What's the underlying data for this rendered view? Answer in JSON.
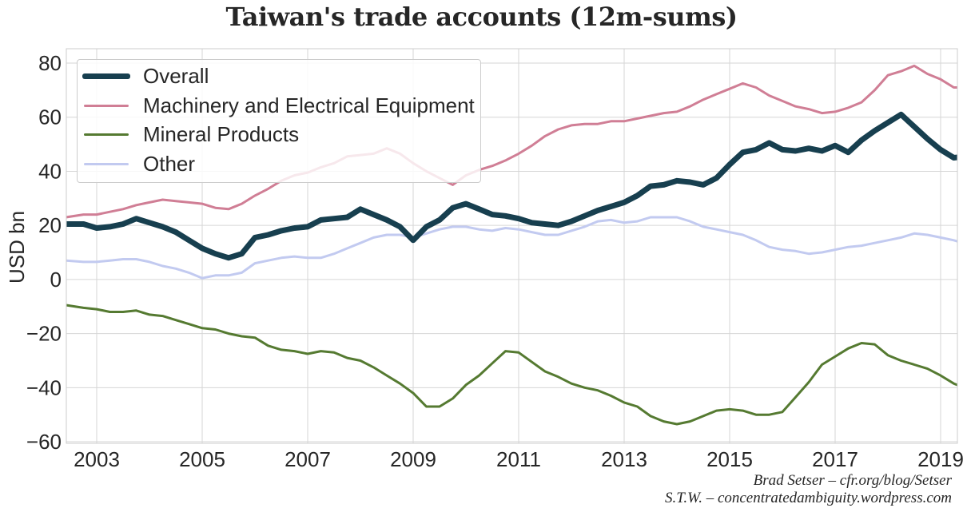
{
  "title": "Taiwan's trade accounts (12m-sums)",
  "credits": [
    "Brad Setser – cfr.org/blog/Setser",
    "S.T.W. – concentratedambiguity.wordpress.com"
  ],
  "colors": {
    "overall": "#173f4f",
    "machinery": "#d07e95",
    "mineral": "#557a31",
    "other": "#c2caf0",
    "grid": "#d6d6d6",
    "text": "#262626"
  },
  "legend": [
    {
      "label": "Overall",
      "key": "overall"
    },
    {
      "label": "Machinery and Electrical Equipment",
      "key": "machinery"
    },
    {
      "label": "Mineral Products",
      "key": "mineral"
    },
    {
      "label": "Other",
      "key": "other"
    }
  ],
  "chart_data": {
    "type": "line",
    "title": "Taiwan's trade accounts (12m-sums)",
    "xlabel": "",
    "ylabel": "USD bn",
    "xlim": [
      2002.42,
      2019.5
    ],
    "ylim": [
      -60,
      85
    ],
    "yticks": [
      80,
      60,
      40,
      20,
      0,
      -20,
      -40,
      -60
    ],
    "ytick_labels": [
      "80",
      "60",
      "40",
      "20",
      "0",
      "−20",
      "−40",
      "−60"
    ],
    "xticks": [
      2003,
      2005,
      2007,
      2009,
      2011,
      2013,
      2015,
      2017,
      2019
    ],
    "grid": true,
    "legend_position": "upper left",
    "series": [
      {
        "name": "Overall",
        "x": [
          2002.42,
          2002.75,
          2003.0,
          2003.25,
          2003.5,
          2003.75,
          2004.0,
          2004.25,
          2004.5,
          2004.75,
          2005.0,
          2005.25,
          2005.5,
          2005.75,
          2006.0,
          2006.25,
          2006.5,
          2006.75,
          2007.0,
          2007.25,
          2007.5,
          2007.75,
          2008.0,
          2008.25,
          2008.5,
          2008.75,
          2009.0,
          2009.25,
          2009.5,
          2009.75,
          2010.0,
          2010.25,
          2010.5,
          2010.75,
          2011.0,
          2011.25,
          2011.5,
          2011.75,
          2012.0,
          2012.25,
          2012.5,
          2012.75,
          2013.0,
          2013.25,
          2013.5,
          2013.75,
          2014.0,
          2014.25,
          2014.5,
          2014.75,
          2015.0,
          2015.25,
          2015.5,
          2015.75,
          2016.0,
          2016.25,
          2016.5,
          2016.75,
          2017.0,
          2017.25,
          2017.5,
          2017.75,
          2018.0,
          2018.25,
          2018.5,
          2018.75,
          2019.0,
          2019.25,
          2019.5
        ],
        "values": [
          20.5,
          20.5,
          19.0,
          19.5,
          20.5,
          22.5,
          21.0,
          19.5,
          17.5,
          14.5,
          11.5,
          9.5,
          8.0,
          9.5,
          15.5,
          16.5,
          18.0,
          19.0,
          19.5,
          22.0,
          22.5,
          23.0,
          26.0,
          24.0,
          22.0,
          19.5,
          14.5,
          19.5,
          22.0,
          26.5,
          28.0,
          26.0,
          24.0,
          23.5,
          22.5,
          21.0,
          20.5,
          20.0,
          21.5,
          23.5,
          25.5,
          27.0,
          28.5,
          31.0,
          34.5,
          35.0,
          36.5,
          36.0,
          35.0,
          37.5,
          42.5,
          47.0,
          48.0,
          50.5,
          48.0,
          47.5,
          48.5,
          47.5,
          49.5,
          47.0,
          51.5,
          55.0,
          58.0,
          61.0,
          56.5,
          52.0,
          48.0,
          45.0,
          45.5
        ]
      },
      {
        "name": "Machinery and Electrical Equipment",
        "x": [
          2002.42,
          2002.75,
          2003.0,
          2003.25,
          2003.5,
          2003.75,
          2004.0,
          2004.25,
          2004.5,
          2004.75,
          2005.0,
          2005.25,
          2005.5,
          2005.75,
          2006.0,
          2006.25,
          2006.5,
          2006.75,
          2007.0,
          2007.25,
          2007.5,
          2007.75,
          2008.0,
          2008.25,
          2008.5,
          2008.75,
          2009.0,
          2009.25,
          2009.5,
          2009.75,
          2010.0,
          2010.25,
          2010.5,
          2010.75,
          2011.0,
          2011.25,
          2011.5,
          2011.75,
          2012.0,
          2012.25,
          2012.5,
          2012.75,
          2013.0,
          2013.25,
          2013.5,
          2013.75,
          2014.0,
          2014.25,
          2014.5,
          2014.75,
          2015.0,
          2015.25,
          2015.5,
          2015.75,
          2016.0,
          2016.25,
          2016.5,
          2016.75,
          2017.0,
          2017.25,
          2017.5,
          2017.75,
          2018.0,
          2018.25,
          2018.5,
          2018.75,
          2019.0,
          2019.25,
          2019.5
        ],
        "values": [
          23.0,
          24.0,
          24.0,
          25.0,
          26.0,
          27.5,
          28.5,
          29.5,
          29.0,
          28.5,
          28.0,
          26.5,
          26.0,
          28.0,
          31.0,
          33.5,
          36.5,
          38.5,
          39.5,
          41.5,
          43.0,
          45.5,
          46.0,
          46.5,
          48.5,
          46.5,
          43.0,
          40.0,
          37.5,
          35.0,
          38.5,
          40.5,
          42.0,
          44.0,
          46.5,
          49.5,
          53.0,
          55.5,
          57.0,
          57.5,
          57.5,
          58.5,
          58.5,
          59.5,
          60.5,
          61.5,
          62.0,
          64.0,
          66.5,
          68.5,
          70.5,
          72.5,
          71.0,
          68.0,
          66.0,
          64.0,
          63.0,
          61.5,
          62.0,
          63.5,
          65.5,
          70.0,
          75.5,
          77.0,
          79.0,
          76.0,
          74.0,
          71.0,
          71.0
        ]
      },
      {
        "name": "Mineral Products",
        "x": [
          2002.42,
          2002.75,
          2003.0,
          2003.25,
          2003.5,
          2003.75,
          2004.0,
          2004.25,
          2004.5,
          2004.75,
          2005.0,
          2005.25,
          2005.5,
          2005.75,
          2006.0,
          2006.25,
          2006.5,
          2006.75,
          2007.0,
          2007.25,
          2007.5,
          2007.75,
          2008.0,
          2008.25,
          2008.5,
          2008.75,
          2009.0,
          2009.25,
          2009.5,
          2009.75,
          2010.0,
          2010.25,
          2010.5,
          2010.75,
          2011.0,
          2011.25,
          2011.5,
          2011.75,
          2012.0,
          2012.25,
          2012.5,
          2012.75,
          2013.0,
          2013.25,
          2013.5,
          2013.75,
          2014.0,
          2014.25,
          2014.5,
          2014.75,
          2015.0,
          2015.25,
          2015.5,
          2015.75,
          2016.0,
          2016.25,
          2016.5,
          2016.75,
          2017.0,
          2017.25,
          2017.5,
          2017.75,
          2018.0,
          2018.25,
          2018.5,
          2018.75,
          2019.0,
          2019.25,
          2019.5
        ],
        "values": [
          -9.5,
          -10.5,
          -11.0,
          -12.0,
          -12.0,
          -11.5,
          -13.0,
          -13.5,
          -15.0,
          -16.5,
          -18.0,
          -18.5,
          -20.0,
          -21.0,
          -21.5,
          -24.5,
          -26.0,
          -26.5,
          -27.5,
          -26.5,
          -27.0,
          -29.0,
          -30.0,
          -32.5,
          -35.5,
          -38.5,
          -42.0,
          -47.0,
          -47.0,
          -44.0,
          -39.0,
          -35.5,
          -31.0,
          -26.5,
          -27.0,
          -30.5,
          -34.0,
          -36.0,
          -38.5,
          -40.0,
          -41.0,
          -43.0,
          -45.5,
          -47.0,
          -50.5,
          -52.5,
          -53.5,
          -52.5,
          -50.5,
          -48.5,
          -48.0,
          -48.5,
          -50.0,
          -50.0,
          -49.0,
          -43.5,
          -38.0,
          -31.5,
          -28.5,
          -25.5,
          -23.5,
          -24.0,
          -28.0,
          -30.0,
          -31.5,
          -33.0,
          -35.5,
          -38.5,
          -40.5
        ]
      },
      {
        "name": "Other",
        "x": [
          2002.42,
          2002.75,
          2003.0,
          2003.25,
          2003.5,
          2003.75,
          2004.0,
          2004.25,
          2004.5,
          2004.75,
          2005.0,
          2005.25,
          2005.5,
          2005.75,
          2006.0,
          2006.25,
          2006.5,
          2006.75,
          2007.0,
          2007.25,
          2007.5,
          2007.75,
          2008.0,
          2008.25,
          2008.5,
          2008.75,
          2009.0,
          2009.25,
          2009.5,
          2009.75,
          2010.0,
          2010.25,
          2010.5,
          2010.75,
          2011.0,
          2011.25,
          2011.5,
          2011.75,
          2012.0,
          2012.25,
          2012.5,
          2012.75,
          2013.0,
          2013.25,
          2013.5,
          2013.75,
          2014.0,
          2014.25,
          2014.5,
          2014.75,
          2015.0,
          2015.25,
          2015.5,
          2015.75,
          2016.0,
          2016.25,
          2016.5,
          2016.75,
          2017.0,
          2017.25,
          2017.5,
          2017.75,
          2018.0,
          2018.25,
          2018.5,
          2018.75,
          2019.0,
          2019.25,
          2019.5
        ],
        "values": [
          7.0,
          6.5,
          6.5,
          7.0,
          7.5,
          7.5,
          6.5,
          5.0,
          4.0,
          2.5,
          0.5,
          1.5,
          1.5,
          2.5,
          6.0,
          7.0,
          8.0,
          8.5,
          8.0,
          8.0,
          9.5,
          11.5,
          13.5,
          15.5,
          16.5,
          16.5,
          15.5,
          17.0,
          18.5,
          19.5,
          19.5,
          18.5,
          18.0,
          19.0,
          18.5,
          17.5,
          16.5,
          16.5,
          18.0,
          19.5,
          21.5,
          22.0,
          21.0,
          21.5,
          23.0,
          23.0,
          23.0,
          21.5,
          19.5,
          18.5,
          17.5,
          16.5,
          14.5,
          12.0,
          11.0,
          10.5,
          9.5,
          10.0,
          11.0,
          12.0,
          12.5,
          13.5,
          14.5,
          15.5,
          17.0,
          16.5,
          15.5,
          14.5,
          13.0
        ]
      }
    ]
  }
}
